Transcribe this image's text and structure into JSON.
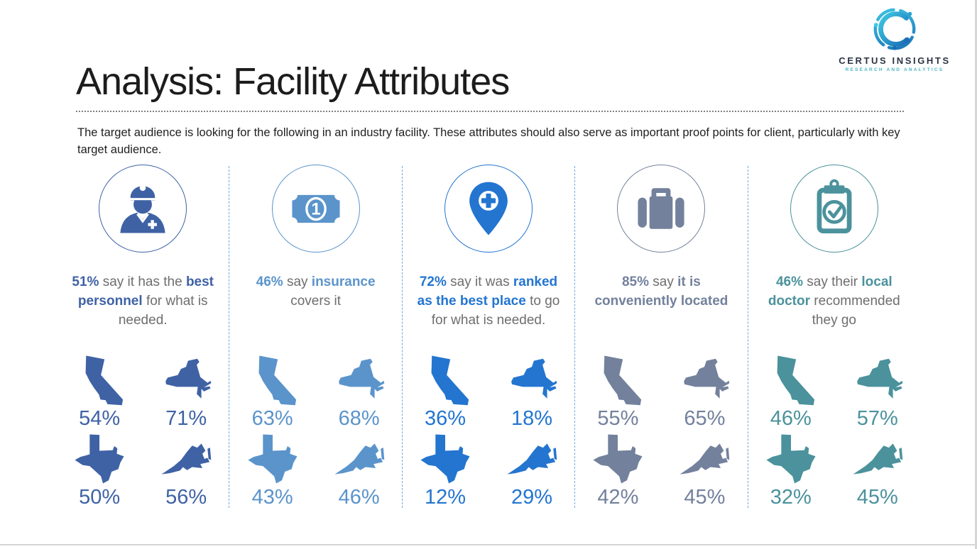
{
  "slide": {
    "title": "Analysis: Facility Attributes",
    "subtitle": "The target audience is looking for the following in an industry facility. These attributes should also serve as important proof points for client, particularly with key target audience.",
    "logo": {
      "brand": "CERTUS INSIGHTS",
      "tagline": "RESEARCH AND ANALYTICS",
      "accent_light": "#3fc8e4",
      "accent_dark": "#1a6fb5",
      "text_color": "#2b3442"
    },
    "divider_color": "#6fa8dc"
  },
  "columns": [
    {
      "id": "best-personnel",
      "icon": "nurse-icon",
      "accent": "#3f62a5",
      "statement_parts": [
        {
          "t": "51%",
          "em": true
        },
        {
          "t": " say it has the ",
          "em": false
        },
        {
          "t": "best personnel",
          "em": true
        },
        {
          "t": " for what is needed.",
          "em": false
        }
      ],
      "states": [
        {
          "name": "California",
          "value": "54%"
        },
        {
          "name": "New York",
          "value": "71%"
        },
        {
          "name": "Texas",
          "value": "50%"
        },
        {
          "name": "Virginia",
          "value": "56%"
        }
      ]
    },
    {
      "id": "insurance-covers",
      "icon": "money-icon",
      "accent": "#5b94cb",
      "statement_parts": [
        {
          "t": "46%",
          "em": true
        },
        {
          "t": " say ",
          "em": false
        },
        {
          "t": "insurance",
          "em": true
        },
        {
          "t": " covers it",
          "em": false
        }
      ],
      "states": [
        {
          "name": "California",
          "value": "63%"
        },
        {
          "name": "New York",
          "value": "68%"
        },
        {
          "name": "Texas",
          "value": "43%"
        },
        {
          "name": "Virginia",
          "value": "46%"
        }
      ]
    },
    {
      "id": "ranked-best-place",
      "icon": "map-pin-cross-icon",
      "accent": "#2375d0",
      "statement_parts": [
        {
          "t": "72%",
          "em": true
        },
        {
          "t": " say it was ",
          "em": false
        },
        {
          "t": "ranked as the best place",
          "em": true
        },
        {
          "t": " to go for what is needed.",
          "em": false
        }
      ],
      "states": [
        {
          "name": "California",
          "value": "36%"
        },
        {
          "name": "New York",
          "value": "18%"
        },
        {
          "name": "Texas",
          "value": "12%"
        },
        {
          "name": "Virginia",
          "value": "29%"
        }
      ]
    },
    {
      "id": "conveniently-located",
      "icon": "briefcase-icon",
      "accent": "#73819c",
      "statement_parts": [
        {
          "t": "85%",
          "em": true
        },
        {
          "t": " say ",
          "em": false
        },
        {
          "t": "it is conveniently located",
          "em": true
        }
      ],
      "states": [
        {
          "name": "California",
          "value": "55%"
        },
        {
          "name": "New York",
          "value": "65%"
        },
        {
          "name": "Texas",
          "value": "42%"
        },
        {
          "name": "Virginia",
          "value": "45%"
        }
      ]
    },
    {
      "id": "local-doctor-recommended",
      "icon": "clipboard-check-icon",
      "accent": "#4b929c",
      "statement_parts": [
        {
          "t": "46%",
          "em": true
        },
        {
          "t": " say their ",
          "em": false
        },
        {
          "t": "local doctor",
          "em": true
        },
        {
          "t": " recommended they go",
          "em": false
        }
      ],
      "states": [
        {
          "name": "California",
          "value": "46%"
        },
        {
          "name": "New York",
          "value": "57%"
        },
        {
          "name": "Texas",
          "value": "32%"
        },
        {
          "name": "Virginia",
          "value": "45%"
        }
      ]
    }
  ]
}
